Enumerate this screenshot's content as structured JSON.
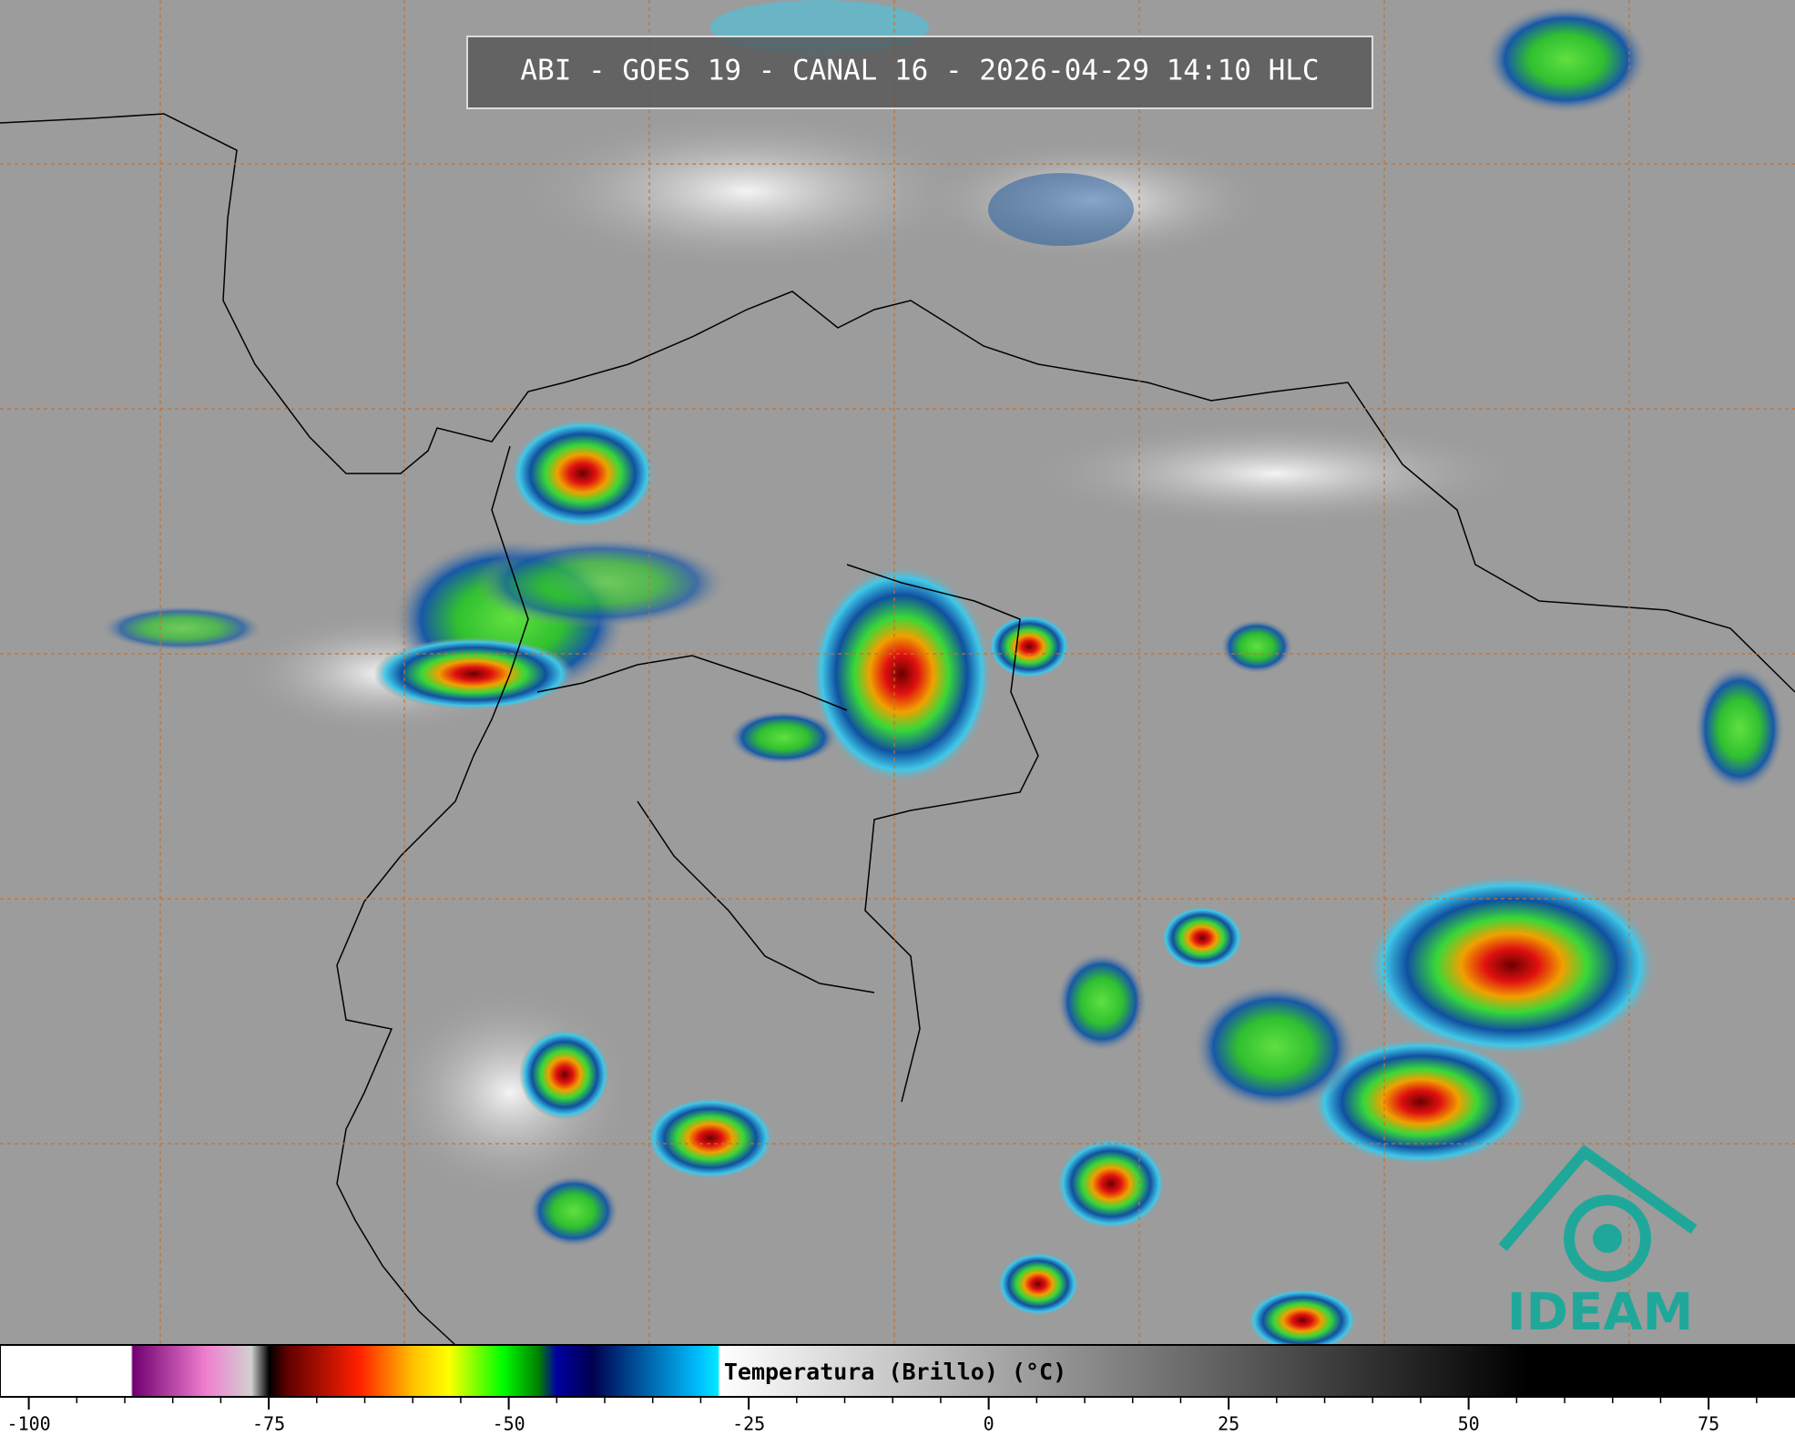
{
  "title": "ABI - GOES 19 - CANAL 16 - 2026-04-29 14:10 HLC",
  "colorbar": {
    "label": "Temperatura (Brillo) (°C)",
    "xlim": [
      -103,
      84
    ],
    "xticks": [
      -100,
      -75,
      -50,
      -25,
      0,
      25,
      50,
      75
    ]
  },
  "logo": "IDEAM"
}
